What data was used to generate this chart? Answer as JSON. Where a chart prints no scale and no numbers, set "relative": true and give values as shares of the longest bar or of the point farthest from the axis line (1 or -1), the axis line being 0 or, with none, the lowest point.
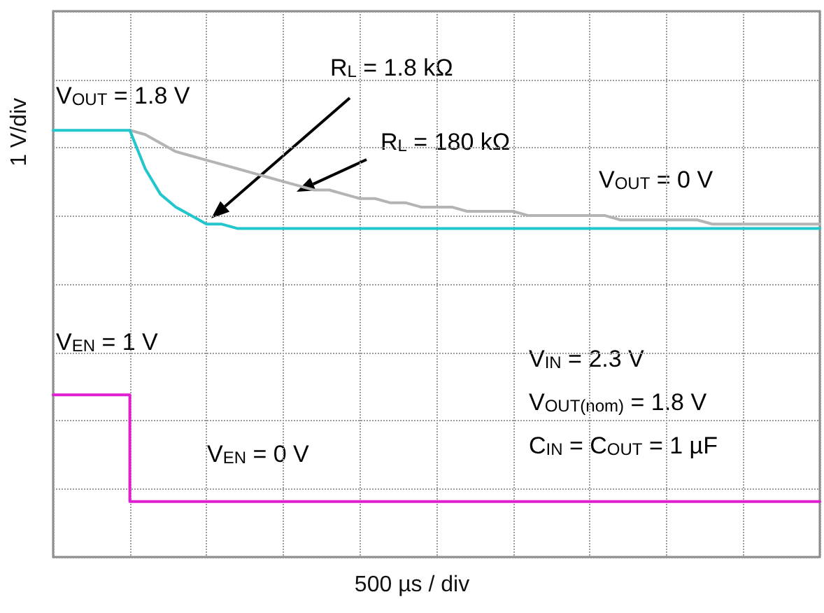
{
  "chart_data": {
    "type": "line",
    "relative": true,
    "xlabel": "500 µs / div",
    "ylabel": "1 V/div",
    "grid": true,
    "legend": false,
    "line_style": "solid",
    "categories": [
      null,
      null,
      null,
      null,
      null,
      null,
      null,
      null,
      null,
      null,
      null,
      null,
      null,
      null,
      null,
      null,
      null,
      null,
      null,
      null,
      null,
      null,
      null,
      null,
      null,
      null,
      null,
      null,
      null,
      null,
      null,
      null,
      null,
      null,
      null,
      null,
      null,
      null,
      null,
      null,
      null,
      null,
      null,
      null,
      null,
      null,
      null,
      null,
      null,
      null,
      null
    ],
    "series": [
      {
        "name": "R$_{L}$ = 180 kΩ",
        "color": "#b4b4b4",
        "values": [
          null,
          null,
          null,
          null,
          null,
          1,
          0.99,
          0.97,
          0.95,
          0.94,
          0.93,
          0.92,
          0.91,
          0.9,
          0.89,
          0.88,
          0.87,
          0.86,
          0.86,
          0.85,
          0.84,
          0.84,
          0.83,
          0.83,
          0.82,
          0.82,
          0.82,
          0.81,
          0.81,
          0.81,
          0.81,
          0.8,
          0.8,
          0.8,
          0.8,
          0.8,
          0.8,
          0.79,
          0.79,
          0.79,
          0.79,
          0.79,
          0.79,
          0.78,
          0.78,
          0.78,
          0.78,
          0.78,
          0.78,
          0.78,
          0.78
        ]
      },
      {
        "name": "R$_{L}$ = 1.8 kΩ",
        "color": "#22c6cc",
        "values": [
          1,
          1,
          1,
          1,
          1,
          1,
          0.91,
          0.85,
          0.82,
          0.8,
          0.78,
          0.78,
          0.77,
          0.77,
          0.77,
          0.77,
          0.77,
          0.77,
          0.77,
          0.77,
          0.77,
          0.77,
          0.77,
          0.77,
          0.77,
          0.77,
          0.77,
          0.77,
          0.77,
          0.77,
          0.77,
          0.77,
          0.77,
          0.77,
          0.77,
          0.77,
          0.77,
          0.77,
          0.77,
          0.77,
          0.77,
          0.77,
          0.77,
          0.77,
          0.77,
          0.77,
          0.77,
          0.77,
          0.77,
          0.77,
          0.77
        ]
      },
      {
        "type": "step",
        "color": "#e020d0",
        "values": [
          0.38,
          0.38,
          0.38,
          0.38,
          0.38,
          0.13,
          0.13,
          0.13,
          0.13,
          0.13,
          0.13,
          0.13,
          0.13,
          0.13,
          0.13,
          0.13,
          0.13,
          0.13,
          0.13,
          0.13,
          0.13,
          0.13,
          0.13,
          0.13,
          0.13,
          0.13,
          0.13,
          0.13,
          0.13,
          0.13,
          0.13,
          0.13,
          0.13,
          0.13,
          0.13,
          0.13,
          0.13,
          0.13,
          0.13,
          0.13,
          0.13,
          0.13,
          0.13,
          0.13,
          0.13,
          0.13,
          0.13,
          0.13,
          0.13,
          0.13,
          0.13
        ]
      }
    ],
    "annotations": [
      "V$_{OUT}$ = 1.8 V",
      "V$_{OUT}$ = 0 V",
      "V$_{EN}$ = 1 V",
      "V$_{EN}$ = 0 V",
      "V$_{IN}$ = 2.3 V",
      "V$_{OUT(nom)}$ = 1.8 V",
      "C$_{IN}$ = C$_{OUT}$ = 1 µF"
    ]
  }
}
